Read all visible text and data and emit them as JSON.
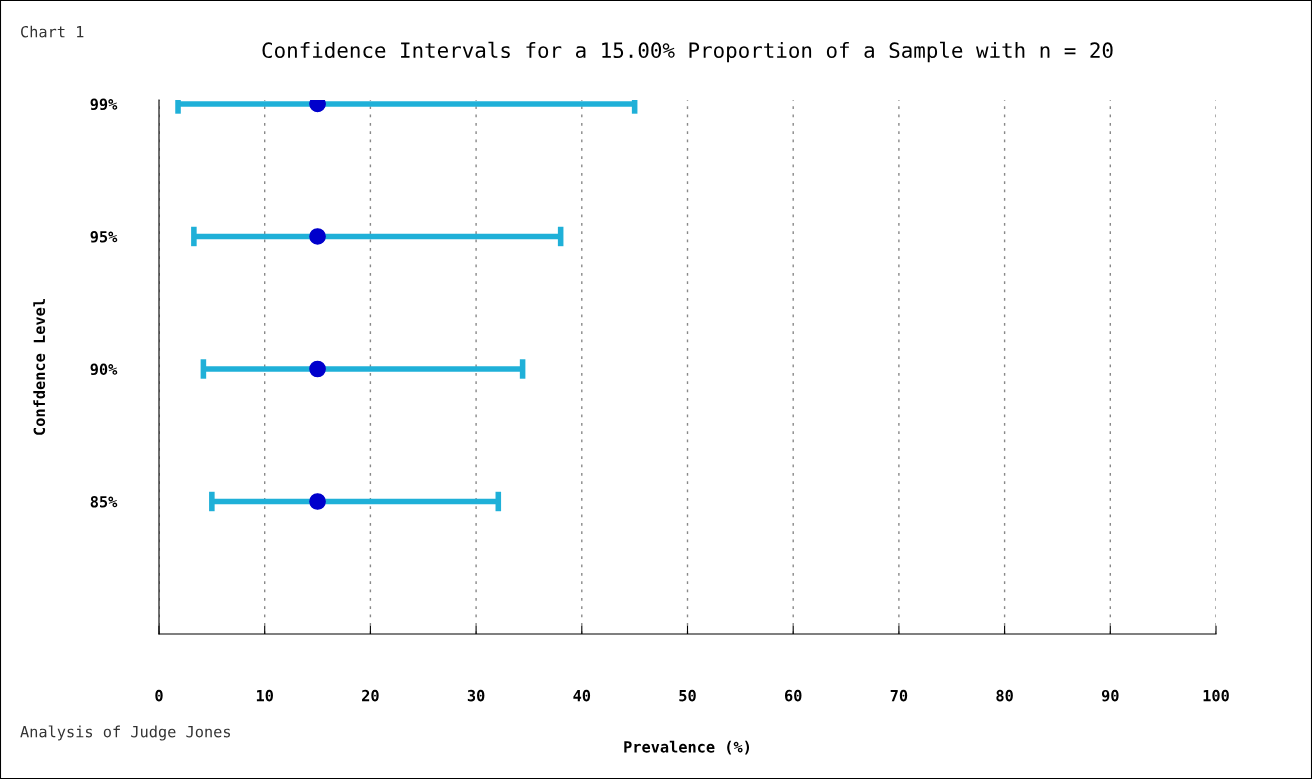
{
  "chart_data": {
    "type": "scatter",
    "title": "Confidence Intervals for a 15.00% Proportion of a Sample with n = 20",
    "xlabel": "Prevalence (%)",
    "ylabel": "Confdence Level",
    "orientation": "horizontal",
    "categories": [
      "99%",
      "95%",
      "90%",
      "85%"
    ],
    "series": [
      {
        "color": "#0000cc",
        "values": [
          15,
          15,
          15,
          15
        ],
        "errors": [
          [
            1.8,
            45.0
          ],
          [
            3.3,
            38.0
          ],
          [
            4.2,
            34.4
          ],
          [
            5.0,
            32.1
          ]
        ]
      }
    ],
    "xlim": [
      0,
      100
    ],
    "xticks": [
      0,
      10,
      20,
      30,
      40,
      50,
      60,
      70,
      80,
      90,
      100
    ],
    "grid": "x",
    "marker": "circle",
    "annotations": [
      "Chart 1",
      "Analysis of Judge Jones"
    ]
  }
}
